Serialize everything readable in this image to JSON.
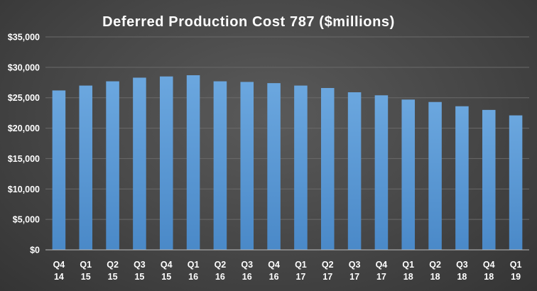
{
  "chart_data": {
    "type": "bar",
    "title": "Deferred  Production  Cost  787  ($millions)",
    "categories": [
      [
        "Q4",
        "14"
      ],
      [
        "Q1",
        "15"
      ],
      [
        "Q2",
        "15"
      ],
      [
        "Q3",
        "15"
      ],
      [
        "Q4",
        "15"
      ],
      [
        "Q1",
        "16"
      ],
      [
        "Q2",
        "16"
      ],
      [
        "Q3",
        "16"
      ],
      [
        "Q4",
        "16"
      ],
      [
        "Q1",
        "17"
      ],
      [
        "Q2",
        "17"
      ],
      [
        "Q3",
        "17"
      ],
      [
        "Q4",
        "17"
      ],
      [
        "Q1",
        "18"
      ],
      [
        "Q2",
        "18"
      ],
      [
        "Q3",
        "18"
      ],
      [
        "Q4",
        "18"
      ],
      [
        "Q1",
        "19"
      ]
    ],
    "values": [
      26200,
      27000,
      27700,
      28300,
      28500,
      28700,
      27700,
      27600,
      27400,
      27000,
      26600,
      25900,
      25400,
      24700,
      24300,
      23600,
      23000,
      22100
    ],
    "ylim": [
      0,
      35000
    ],
    "yticks": [
      0,
      5000,
      10000,
      15000,
      20000,
      25000,
      30000,
      35000
    ],
    "ytick_labels": [
      "$0",
      "$5,000",
      "$10,000",
      "$15,000",
      "$20,000",
      "$25,000",
      "$30,000",
      "$35,000"
    ],
    "grid": true,
    "bar_color": "#5b9bd5",
    "xlabel": "",
    "ylabel": ""
  }
}
